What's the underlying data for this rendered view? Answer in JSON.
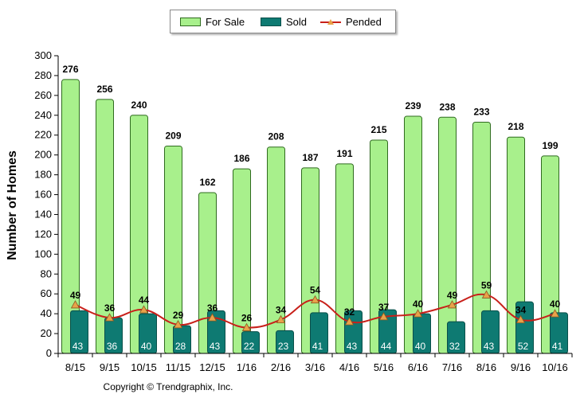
{
  "legend": {
    "for_sale": "For Sale",
    "sold": "Sold",
    "pended": "Pended"
  },
  "copyright": "Copyright © Trendgraphix, Inc.",
  "colors": {
    "for_sale_fill": "#a8f08c",
    "for_sale_stroke": "#2f6b1f",
    "sold_fill": "#0e7a72",
    "sold_stroke": "#0a4f4a",
    "pended_line": "#c8201a",
    "pended_marker": "#e8a24a"
  },
  "chart_data": {
    "type": "bar",
    "title": "",
    "xlabel": "",
    "ylabel": "Number of Homes",
    "ylim": [
      0,
      300
    ],
    "yticks": [
      0,
      20,
      40,
      60,
      80,
      100,
      120,
      140,
      160,
      180,
      200,
      220,
      240,
      260,
      280,
      300
    ],
    "categories": [
      "8/15",
      "9/15",
      "10/15",
      "11/15",
      "12/15",
      "1/16",
      "2/16",
      "3/16",
      "4/16",
      "5/16",
      "6/16",
      "7/16",
      "8/16",
      "9/16",
      "10/16"
    ],
    "series": [
      {
        "name": "For Sale",
        "type": "bar",
        "values": [
          276,
          256,
          240,
          209,
          162,
          186,
          208,
          187,
          191,
          215,
          239,
          238,
          233,
          218,
          199
        ]
      },
      {
        "name": "Sold",
        "type": "bar",
        "values": [
          43,
          36,
          40,
          28,
          43,
          22,
          23,
          41,
          43,
          44,
          40,
          32,
          43,
          52,
          41
        ]
      },
      {
        "name": "Pended",
        "type": "line",
        "values": [
          49,
          36,
          44,
          29,
          36,
          26,
          34,
          54,
          32,
          37,
          40,
          49,
          59,
          34,
          40
        ]
      }
    ]
  }
}
